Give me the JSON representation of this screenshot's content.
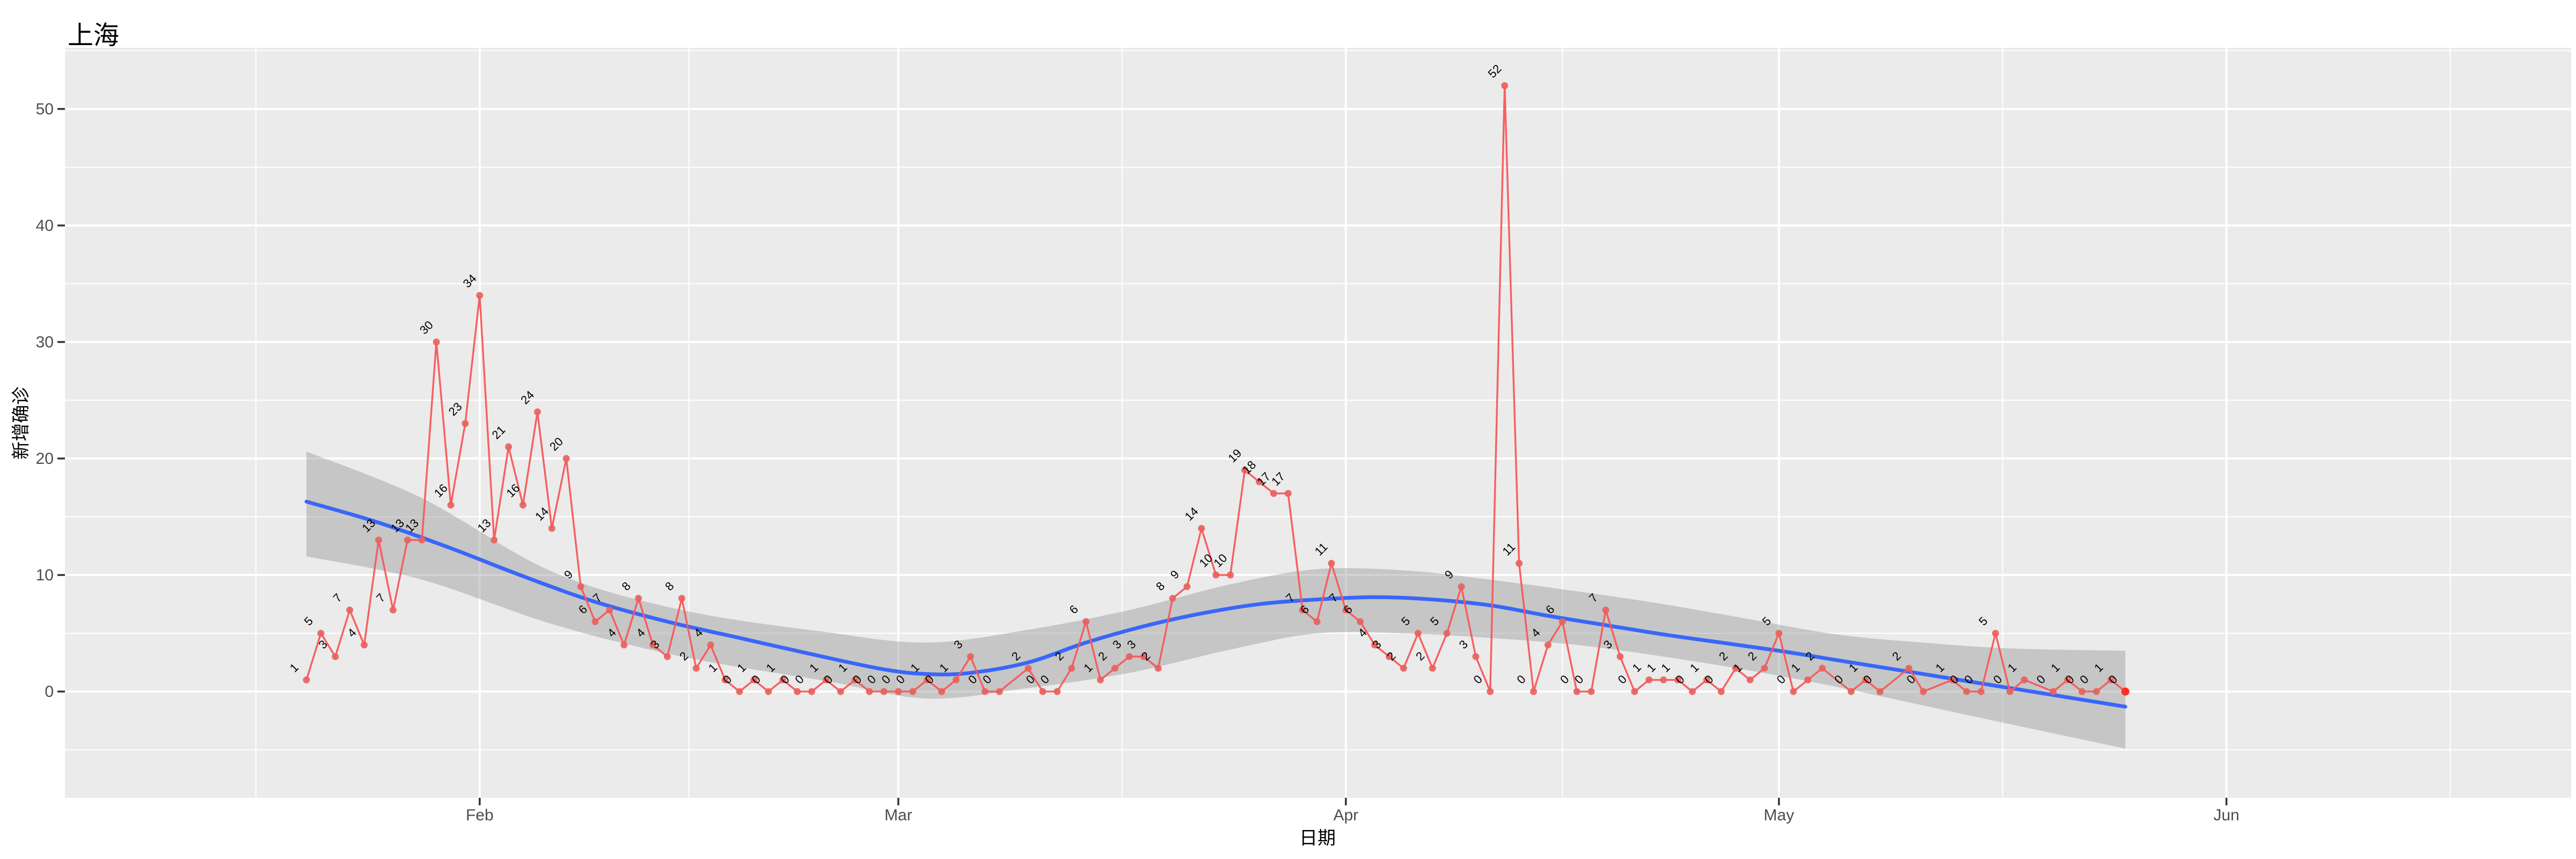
{
  "title": "上海",
  "axes": {
    "x_label": "日期",
    "y_label": "新增确诊",
    "x_tick_labels": [
      "Feb",
      "Mar",
      "Apr",
      "May",
      "Jun"
    ],
    "y_tick_labels": [
      "0",
      "10",
      "20",
      "30",
      "40",
      "50"
    ]
  },
  "colors": {
    "panel_bg": "#EBEBEB",
    "grid": "#FFFFFF",
    "series_red": "#F8575A",
    "point_red": "#E8605C",
    "latest_point": "#FF2D23",
    "smooth_blue": "#3A66F8",
    "ribbon_gray": "#8F8F8F",
    "tick_text": "#4D4D4D",
    "tick_mark": "#333333",
    "label_text": "#000000"
  },
  "chart_data": {
    "type": "line",
    "title": "上海",
    "xlabel": "日期",
    "ylabel": "新增确诊",
    "x_unit": "day index (0 = first observation, late Jan; month ticks below)",
    "xlim": [
      -16.73,
      156.88
    ],
    "ylim": [
      -9.12,
      55.25
    ],
    "x_ticks": [
      {
        "label": "Feb",
        "day": 12
      },
      {
        "label": "Mar",
        "day": 41
      },
      {
        "label": "Apr",
        "day": 72
      },
      {
        "label": "May",
        "day": 102
      },
      {
        "label": "Jun",
        "day": 133
      }
    ],
    "x_minor_days": [
      -3.5,
      26.5,
      56.5,
      87,
      117.5,
      148.5
    ],
    "y_ticks": [
      0,
      10,
      20,
      30,
      40,
      50
    ],
    "y_minor": [
      -5,
      5,
      15,
      25,
      35,
      45,
      55
    ],
    "grid": true,
    "legend": "none",
    "series": [
      {
        "name": "新增确诊 daily points (labeled)",
        "points": [
          [
            0,
            1
          ],
          [
            1,
            5
          ],
          [
            2,
            3
          ],
          [
            3,
            7
          ],
          [
            4,
            4
          ],
          [
            5,
            13
          ],
          [
            6,
            7
          ],
          [
            7,
            13
          ],
          [
            8,
            13
          ],
          [
            9,
            30
          ],
          [
            10,
            16
          ],
          [
            11,
            23
          ],
          [
            12,
            34
          ],
          [
            13,
            13
          ],
          [
            14,
            21
          ],
          [
            15,
            16
          ],
          [
            16,
            24
          ],
          [
            17,
            14
          ],
          [
            18,
            20
          ],
          [
            19,
            9
          ],
          [
            20,
            6
          ],
          [
            21,
            7
          ],
          [
            22,
            4
          ],
          [
            23,
            8
          ],
          [
            24,
            4
          ],
          [
            25,
            3
          ],
          [
            26,
            8
          ],
          [
            27,
            2
          ],
          [
            28,
            4
          ],
          [
            29,
            1
          ],
          [
            30,
            0
          ],
          [
            31,
            1
          ],
          [
            32,
            0
          ],
          [
            33,
            1
          ],
          [
            34,
            0
          ],
          [
            35,
            0
          ],
          [
            36,
            1
          ],
          [
            37,
            0
          ],
          [
            38,
            1
          ],
          [
            39,
            0
          ],
          [
            40,
            0
          ],
          [
            41,
            0
          ],
          [
            42,
            0
          ],
          [
            43,
            1
          ],
          [
            44,
            0
          ],
          [
            45,
            1
          ],
          [
            46,
            3
          ],
          [
            47,
            0
          ],
          [
            48,
            0
          ],
          [
            50,
            2
          ],
          [
            51,
            0
          ],
          [
            52,
            0
          ],
          [
            53,
            2
          ],
          [
            54,
            6
          ],
          [
            55,
            1
          ],
          [
            56,
            2
          ],
          [
            57,
            3
          ],
          [
            58,
            3
          ],
          [
            59,
            2
          ],
          [
            60,
            8
          ],
          [
            61,
            9
          ],
          [
            62,
            14
          ],
          [
            63,
            10
          ],
          [
            64,
            10
          ],
          [
            65,
            19
          ],
          [
            66,
            18
          ],
          [
            67,
            17
          ],
          [
            68,
            17
          ],
          [
            69,
            7
          ],
          [
            70,
            6
          ],
          [
            71,
            11
          ],
          [
            72,
            7
          ],
          [
            73,
            6
          ],
          [
            74,
            4
          ],
          [
            75,
            3
          ],
          [
            76,
            2
          ],
          [
            77,
            5
          ],
          [
            78,
            2
          ],
          [
            79,
            5
          ],
          [
            80,
            9
          ],
          [
            81,
            3
          ],
          [
            82,
            0
          ],
          [
            83,
            52
          ],
          [
            84,
            11
          ],
          [
            85,
            0
          ],
          [
            86,
            4
          ],
          [
            87,
            6
          ],
          [
            88,
            0
          ],
          [
            89,
            0
          ],
          [
            90,
            7
          ],
          [
            91,
            3
          ],
          [
            92,
            0
          ],
          [
            93,
            1
          ],
          [
            94,
            1
          ],
          [
            95,
            1
          ],
          [
            96,
            0
          ],
          [
            97,
            1
          ],
          [
            98,
            0
          ],
          [
            99,
            2
          ],
          [
            100,
            1
          ],
          [
            101,
            2
          ],
          [
            102,
            5
          ],
          [
            103,
            0
          ],
          [
            104,
            1
          ],
          [
            105,
            2
          ],
          [
            107,
            0
          ],
          [
            108,
            1
          ],
          [
            109,
            0
          ],
          [
            111,
            2
          ],
          [
            112,
            0
          ],
          [
            114,
            1
          ],
          [
            115,
            0
          ],
          [
            116,
            0
          ],
          [
            117,
            5
          ],
          [
            118,
            0
          ],
          [
            119,
            1
          ],
          [
            121,
            0
          ],
          [
            122,
            1
          ],
          [
            123,
            0
          ],
          [
            124,
            0
          ],
          [
            125,
            1
          ],
          [
            126,
            0
          ]
        ]
      }
    ],
    "smooth": {
      "name": "loess smooth",
      "points": [
        [
          0,
          16.3
        ],
        [
          5,
          14.5
        ],
        [
          10,
          12.3
        ],
        [
          15,
          9.9
        ],
        [
          20,
          7.7
        ],
        [
          25,
          6.0
        ],
        [
          30,
          4.6
        ],
        [
          35,
          3.2
        ],
        [
          40,
          1.9
        ],
        [
          43,
          1.5
        ],
        [
          46,
          1.6
        ],
        [
          50,
          2.5
        ],
        [
          54,
          4.2
        ],
        [
          58,
          5.6
        ],
        [
          62,
          6.7
        ],
        [
          66,
          7.5
        ],
        [
          70,
          7.9
        ],
        [
          74,
          8.1
        ],
        [
          78,
          7.9
        ],
        [
          82,
          7.4
        ],
        [
          86,
          6.5
        ],
        [
          90,
          5.7
        ],
        [
          94,
          4.9
        ],
        [
          98,
          4.2
        ],
        [
          102,
          3.5
        ],
        [
          106,
          2.7
        ],
        [
          110,
          1.9
        ],
        [
          114,
          1.1
        ],
        [
          118,
          0.3
        ],
        [
          122,
          -0.5
        ],
        [
          126,
          -1.3
        ]
      ]
    },
    "ribbon": {
      "name": "confidence band",
      "upper": [
        [
          0,
          20.6
        ],
        [
          8,
          16.6
        ],
        [
          17,
          10.3
        ],
        [
          26,
          7.0
        ],
        [
          36,
          5.1
        ],
        [
          43,
          4.2
        ],
        [
          50,
          5.3
        ],
        [
          57,
          7.0
        ],
        [
          64,
          9.2
        ],
        [
          70,
          10.5
        ],
        [
          76,
          10.4
        ],
        [
          82,
          9.6
        ],
        [
          88,
          8.6
        ],
        [
          94,
          7.5
        ],
        [
          100,
          6.2
        ],
        [
          106,
          4.9
        ],
        [
          112,
          4.2
        ],
        [
          118,
          3.7
        ],
        [
          126,
          3.5
        ]
      ],
      "lower": [
        [
          0,
          11.6
        ],
        [
          8,
          9.6
        ],
        [
          17,
          5.8
        ],
        [
          26,
          3.0
        ],
        [
          36,
          0.9
        ],
        [
          43,
          -0.6
        ],
        [
          50,
          0.3
        ],
        [
          57,
          1.6
        ],
        [
          64,
          3.6
        ],
        [
          70,
          5.0
        ],
        [
          76,
          5.0
        ],
        [
          82,
          4.6
        ],
        [
          88,
          4.0
        ],
        [
          94,
          3.0
        ],
        [
          100,
          1.8
        ],
        [
          106,
          0.4
        ],
        [
          112,
          -1.2
        ],
        [
          118,
          -2.8
        ],
        [
          126,
          -4.9
        ]
      ]
    }
  }
}
